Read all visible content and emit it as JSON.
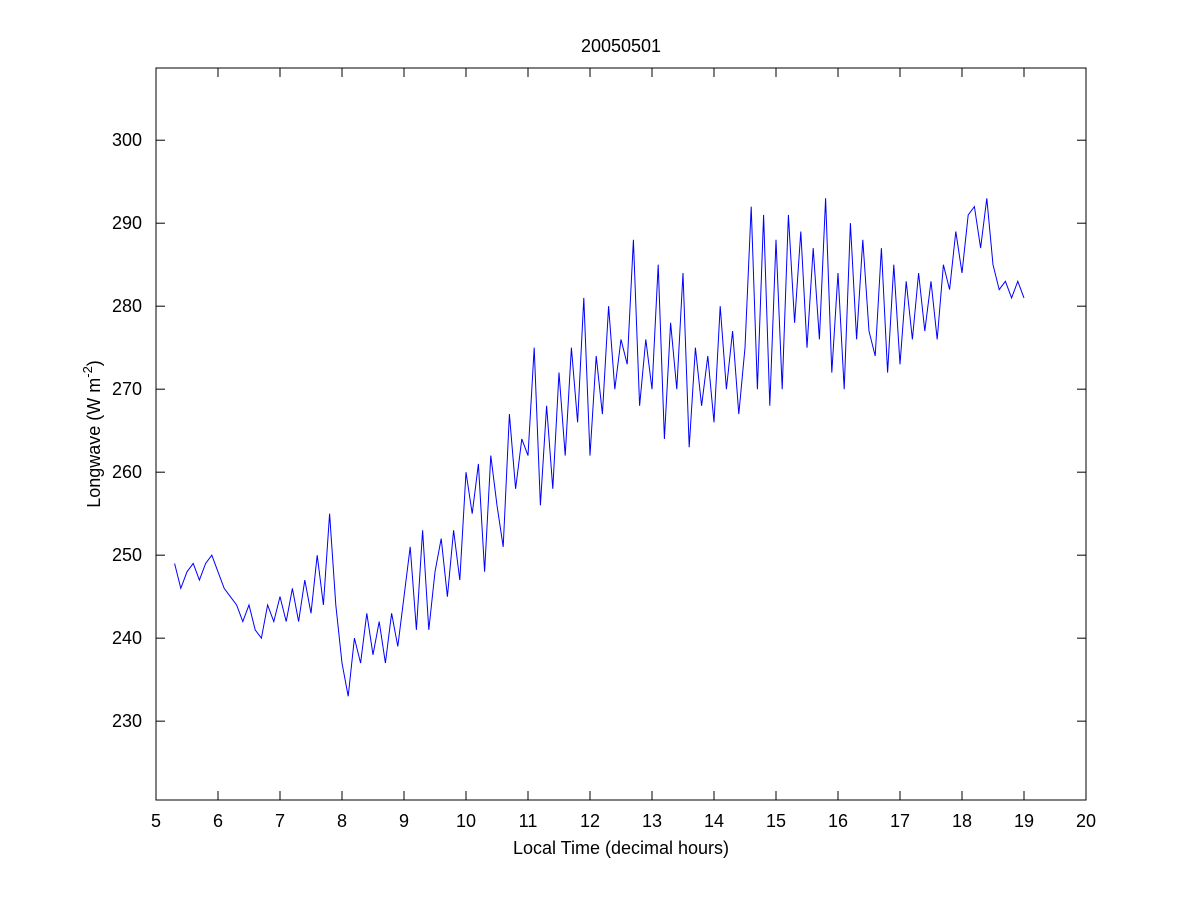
{
  "chart_data": {
    "type": "line",
    "title": "20050501",
    "xlabel": "Local Time (decimal hours)",
    "ylabel": [
      "Longwave (W m",
      "-2",
      ")"
    ],
    "color": "#0000ff",
    "x": [
      5.3,
      5.4,
      5.5,
      5.6,
      5.7,
      5.8,
      5.9,
      6.0,
      6.1,
      6.2,
      6.3,
      6.4,
      6.5,
      6.6,
      6.7,
      6.8,
      6.9,
      7.0,
      7.1,
      7.2,
      7.3,
      7.4,
      7.5,
      7.6,
      7.7,
      7.8,
      7.9,
      8.0,
      8.1,
      8.2,
      8.3,
      8.4,
      8.5,
      8.6,
      8.7,
      8.8,
      8.9,
      9.0,
      9.1,
      9.2,
      9.3,
      9.4,
      9.5,
      9.6,
      9.7,
      9.8,
      9.9,
      10.0,
      10.1,
      10.2,
      10.3,
      10.4,
      10.5,
      10.6,
      10.7,
      10.8,
      10.9,
      11.0,
      11.1,
      11.2,
      11.3,
      11.4,
      11.5,
      11.6,
      11.7,
      11.8,
      11.9,
      12.0,
      12.1,
      12.2,
      12.3,
      12.4,
      12.5,
      12.6,
      12.7,
      12.8,
      12.9,
      13.0,
      13.1,
      13.2,
      13.3,
      13.4,
      13.5,
      13.6,
      13.7,
      13.8,
      13.9,
      14.0,
      14.1,
      14.2,
      14.3,
      14.4,
      14.5,
      14.6,
      14.7,
      14.8,
      14.9,
      15.0,
      15.1,
      15.2,
      15.3,
      15.4,
      15.5,
      15.6,
      15.7,
      15.8,
      15.9,
      16.0,
      16.1,
      16.2,
      16.3,
      16.4,
      16.5,
      16.6,
      16.7,
      16.8,
      16.9,
      17.0,
      17.1,
      17.2,
      17.3,
      17.4,
      17.5,
      17.6,
      17.7,
      17.8,
      17.9,
      18.0,
      18.1,
      18.2,
      18.3,
      18.4,
      18.5,
      18.6,
      18.7,
      18.8,
      18.9,
      19.0
    ],
    "values": [
      249,
      246,
      248,
      249,
      247,
      249,
      250,
      248,
      246,
      245,
      244,
      242,
      244,
      241,
      240,
      244,
      242,
      245,
      242,
      246,
      242,
      247,
      243,
      250,
      244,
      255,
      244,
      237,
      233,
      240,
      237,
      243,
      238,
      242,
      237,
      243,
      239,
      245,
      251,
      241,
      253,
      241,
      248,
      252,
      245,
      253,
      247,
      260,
      255,
      261,
      248,
      262,
      256,
      251,
      267,
      258,
      264,
      262,
      275,
      256,
      268,
      258,
      272,
      262,
      275,
      266,
      281,
      262,
      274,
      267,
      280,
      270,
      276,
      273,
      288,
      268,
      276,
      270,
      285,
      264,
      278,
      270,
      284,
      263,
      275,
      268,
      274,
      266,
      280,
      270,
      277,
      267,
      275,
      292,
      270,
      291,
      268,
      288,
      270,
      291,
      278,
      289,
      275,
      287,
      276,
      293,
      272,
      284,
      270,
      290,
      276,
      288,
      277,
      274,
      287,
      272,
      285,
      273,
      283,
      276,
      284,
      277,
      283,
      276,
      285,
      282,
      289,
      284,
      291,
      292,
      287,
      293,
      285,
      282,
      283,
      281,
      283,
      281
    ],
    "xlim": [
      5,
      20
    ],
    "xticks": [
      5,
      6,
      7,
      8,
      9,
      10,
      11,
      12,
      13,
      14,
      15,
      16,
      17,
      18,
      19,
      20
    ],
    "ylim": [
      220.5,
      308.7
    ],
    "yticks": [
      230,
      240,
      250,
      260,
      270,
      280,
      290,
      300
    ]
  }
}
